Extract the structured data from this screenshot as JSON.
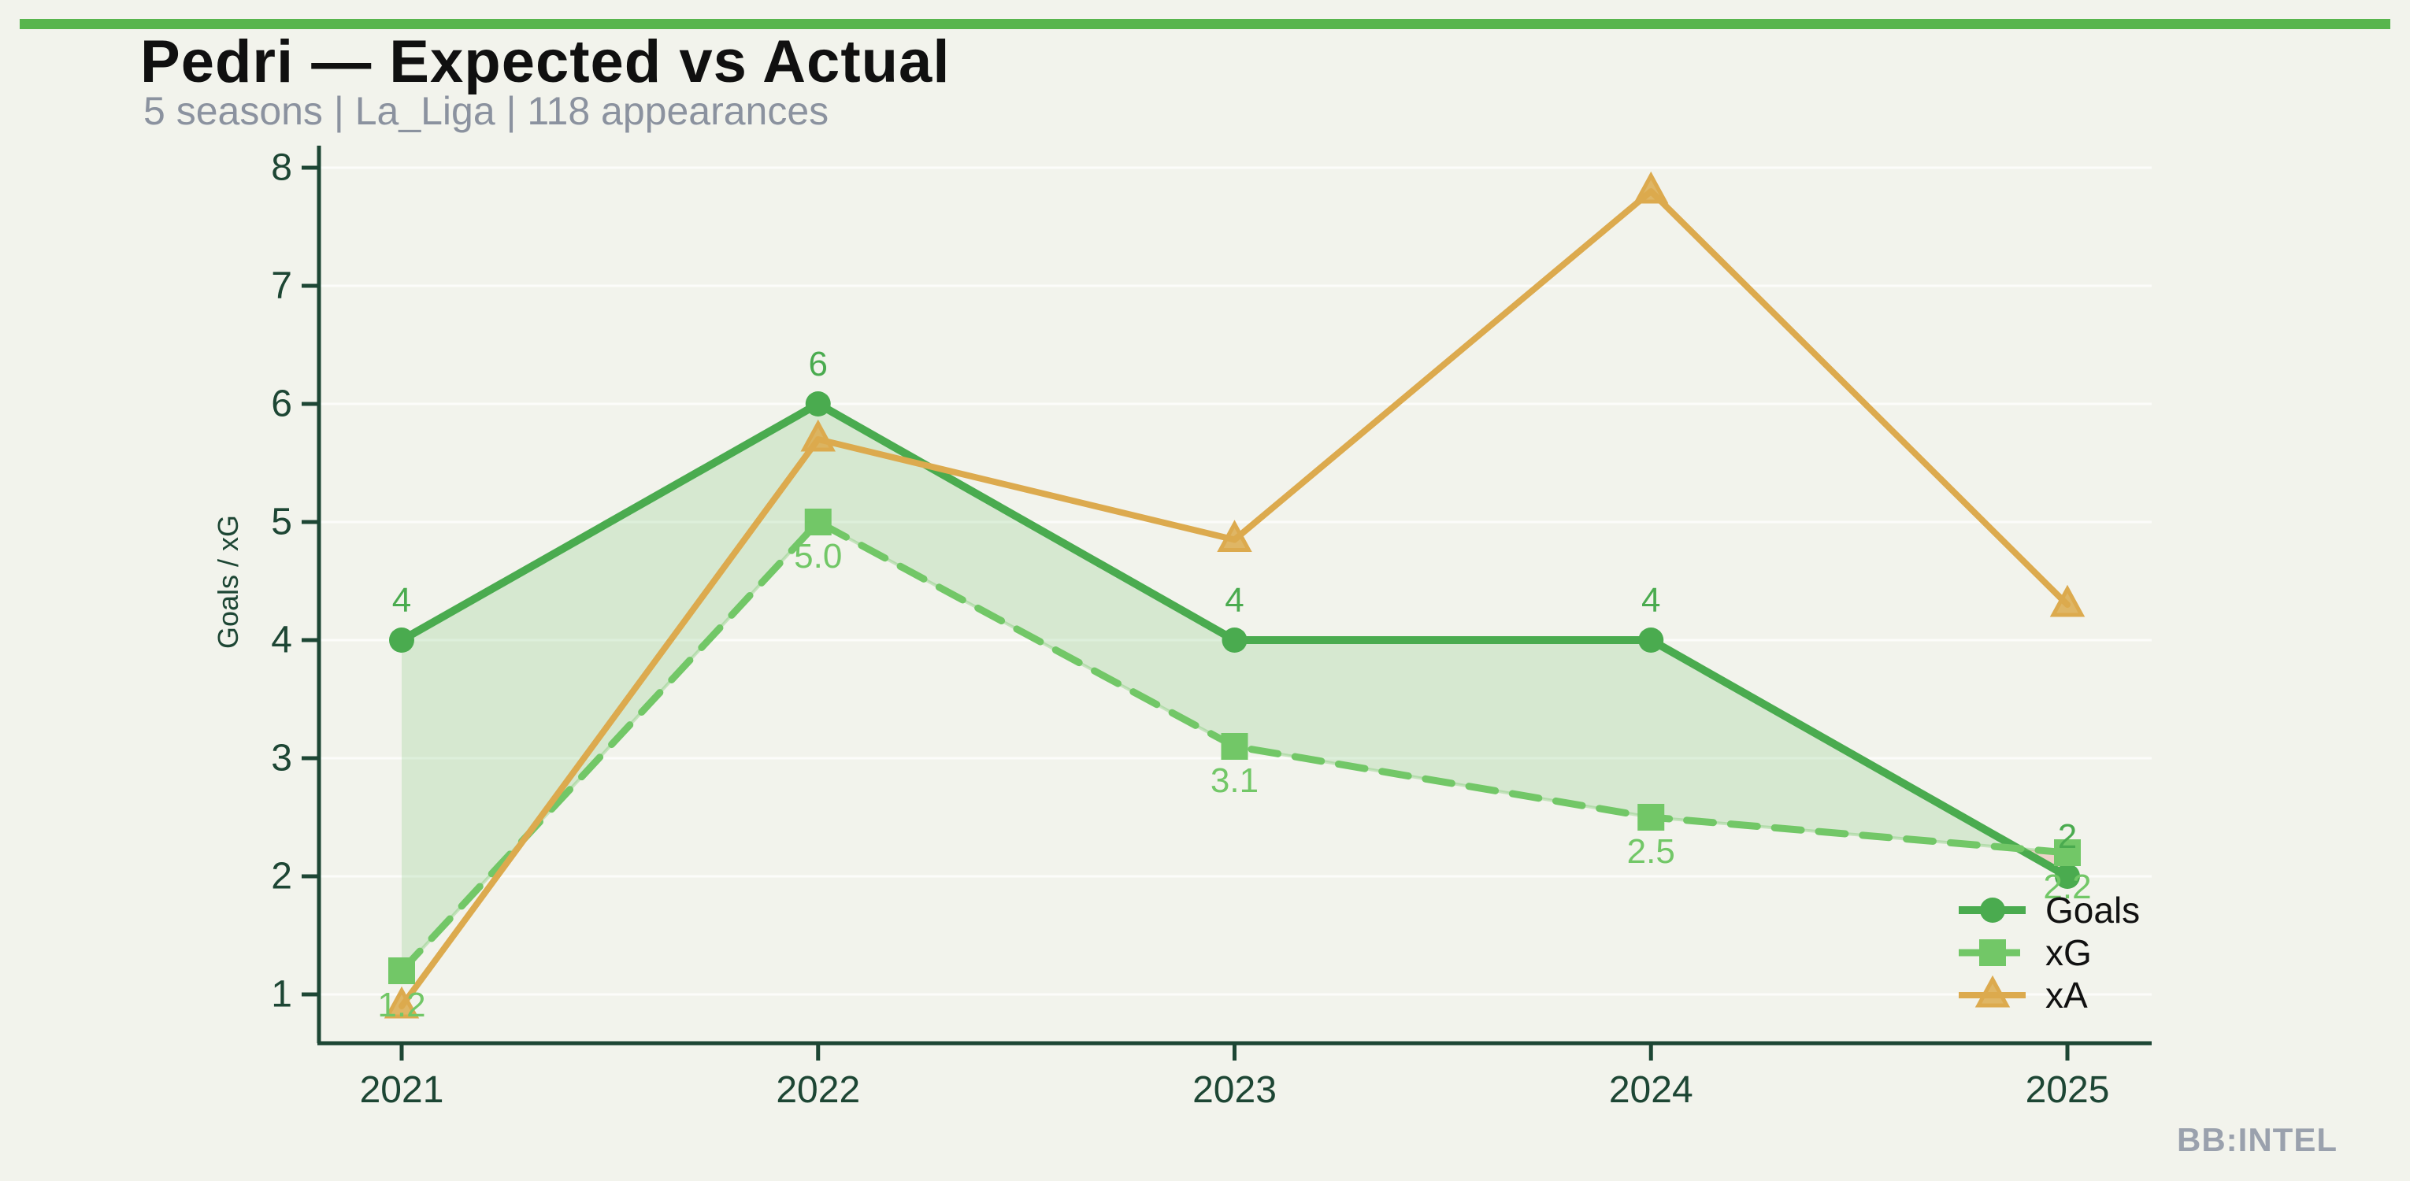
{
  "header": {
    "title": "Pedri — Expected vs Actual",
    "subtitle": "5 seasons | La_Liga | 118 appearances"
  },
  "footer": {
    "brand": "BB:INTEL"
  },
  "colors": {
    "background": "#f2f3ec",
    "accent_bar": "#58b54d",
    "title_text": "#101010",
    "subtitle_text": "#8b929f",
    "axis_text": "#1d4634",
    "footer_text": "#9aa1ad",
    "gridline": "rgba(255,255,255,0.75)",
    "fill_positive": "rgba(116,196,108,0.22)",
    "fill_negative": "rgba(222,100,74,0.22)"
  },
  "chart_data": {
    "type": "line",
    "title": "Pedri — Expected vs Actual",
    "subtitle": "5 seasons | La_Liga | 118 appearances",
    "x": [
      2021,
      2022,
      2023,
      2024,
      2025
    ],
    "series": [
      {
        "name": "Goals",
        "marker": "circle",
        "linestyle": "solid",
        "color": "#4aab4f",
        "stroke_width": 10,
        "values": [
          4,
          6,
          4,
          4,
          2
        ],
        "labels": [
          "4",
          "6",
          "4",
          "4",
          "2"
        ],
        "label_offset": "above"
      },
      {
        "name": "xG",
        "marker": "square",
        "linestyle": "dashed",
        "color": "#72c767",
        "stroke_width": 9,
        "values": [
          1.2,
          5.0,
          3.1,
          2.5,
          2.2
        ],
        "labels": [
          "1.2",
          "5.0",
          "3.1",
          "2.5",
          "2.2"
        ],
        "label_offset": "below"
      },
      {
        "name": "xA",
        "marker": "triangle",
        "linestyle": "solid",
        "color": "#dcaa4e",
        "stroke_width": 8,
        "values": [
          0.9,
          5.7,
          4.85,
          7.8,
          4.3
        ],
        "labels": null,
        "label_offset": "none"
      }
    ],
    "fill_between": {
      "upper": "Goals",
      "lower": "xG",
      "positive_when": "Goals >= xG",
      "negative_when": "xG > Goals"
    },
    "xlabel": "",
    "ylabel": "Goals / xG",
    "y_ticks": [
      1,
      2,
      3,
      4,
      5,
      6,
      7,
      8
    ],
    "ylim": [
      0.45,
      8.6
    ],
    "grid": true,
    "legend": {
      "position": "lower right",
      "entries": [
        "Goals",
        "xG",
        "xA"
      ]
    }
  }
}
